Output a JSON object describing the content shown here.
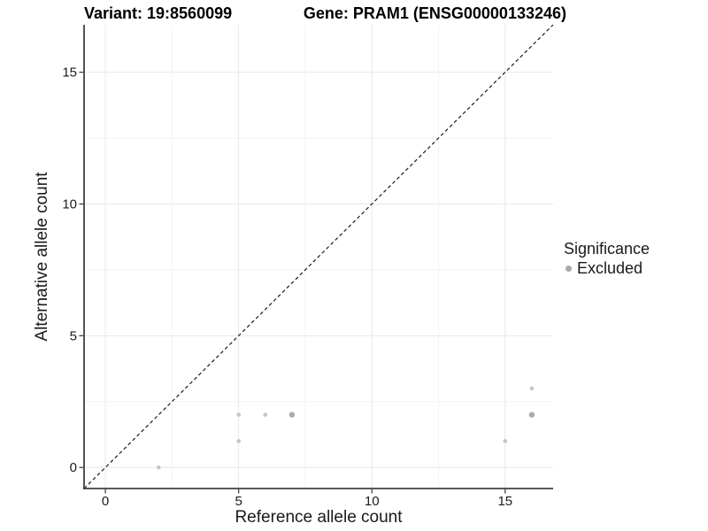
{
  "header": {
    "variant_title": "Variant: 19:8560099",
    "gene_title": "Gene: PRAM1 (ENSG00000133246)"
  },
  "legend": {
    "title": "Significance",
    "items": [
      {
        "label": "Excluded",
        "marker": "circle-icon",
        "color": "#a8a8a8"
      }
    ]
  },
  "axes": {
    "xlabel": "Reference allele count",
    "ylabel": "Alternative allele count"
  },
  "chart_data": {
    "type": "scatter",
    "title_left": "Variant: 19:8560099",
    "title_right": "Gene: PRAM1 (ENSG00000133246)",
    "xlabel": "Reference allele count",
    "ylabel": "Alternative allele count",
    "xlim": [
      -0.8,
      16.8
    ],
    "ylim": [
      -0.8,
      16.8
    ],
    "x_ticks": [
      0,
      5,
      10,
      15
    ],
    "y_ticks": [
      0,
      5,
      10,
      15
    ],
    "x_minor_ticks": [
      2.5,
      7.5,
      12.5
    ],
    "y_minor_ticks": [
      2.5,
      7.5,
      12.5
    ],
    "grid": true,
    "legend_position": "right",
    "identity_line": {
      "style": "dashed",
      "from": [
        -0.8,
        -0.8
      ],
      "to": [
        16.8,
        16.8
      ]
    },
    "series": [
      {
        "name": "Excluded",
        "points": [
          {
            "x": 2,
            "y": 0,
            "size": "small"
          },
          {
            "x": 5,
            "y": 1,
            "size": "small"
          },
          {
            "x": 5,
            "y": 2,
            "size": "small"
          },
          {
            "x": 6,
            "y": 2,
            "size": "small"
          },
          {
            "x": 7,
            "y": 2,
            "size": "large"
          },
          {
            "x": 15,
            "y": 1,
            "size": "small"
          },
          {
            "x": 16,
            "y": 2,
            "size": "large"
          },
          {
            "x": 16,
            "y": 3,
            "size": "small"
          }
        ]
      }
    ]
  },
  "colors": {
    "point_small": "#c5c5c5",
    "point_large": "#acacac",
    "legend_point": "#a8a8a8",
    "grid_major": "#e8e8e8",
    "grid_minor": "#f2f2f2",
    "axis_line": "#404040",
    "tick_mark": "#333333",
    "tick_text": "#1a1a1a",
    "identity_line": "#1a1a1a"
  }
}
